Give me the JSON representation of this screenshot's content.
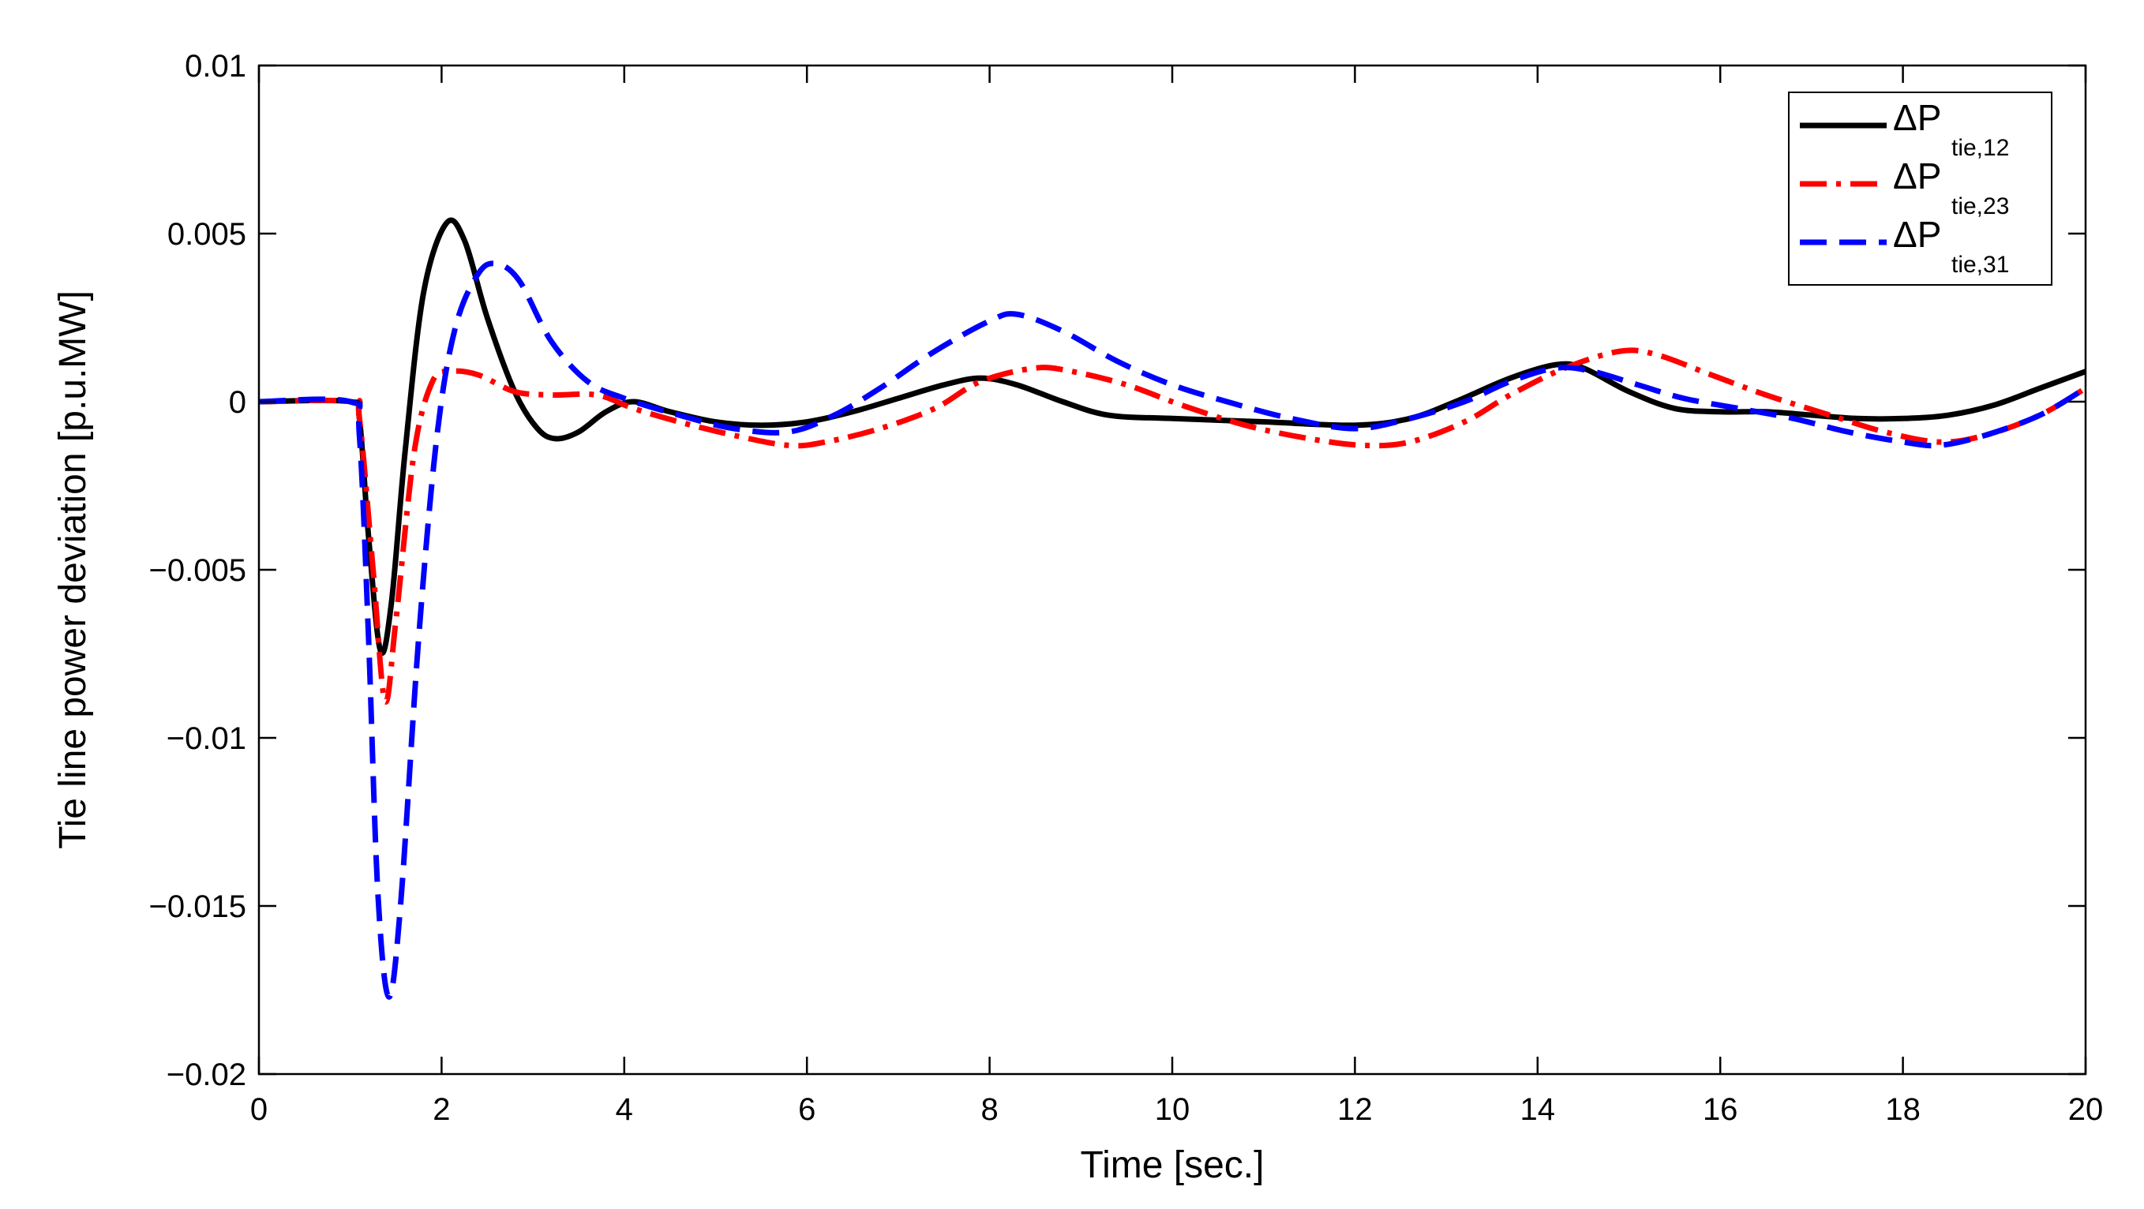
{
  "chart_data": {
    "type": "line",
    "title": "",
    "xlabel": "Time [sec.]",
    "ylabel": "Tie line power deviation [p.u.MW]",
    "xlim": [
      0,
      20
    ],
    "ylim": [
      -0.02,
      0.01
    ],
    "x_ticks": [
      0,
      2,
      4,
      6,
      8,
      10,
      12,
      14,
      16,
      18,
      20
    ],
    "x_tick_labels": [
      "0",
      "2",
      "4",
      "6",
      "8",
      "10",
      "12",
      "14",
      "16",
      "18",
      "20"
    ],
    "y_ticks": [
      0.01,
      0.005,
      0,
      -0.005,
      -0.01,
      -0.015,
      -0.02
    ],
    "y_tick_labels": [
      "0.01",
      "0.005",
      "0",
      "−0.005",
      "−0.01",
      "−0.015",
      "−0.02"
    ],
    "grid": false,
    "legend_position": "top-right",
    "series": [
      {
        "name": "ΔP tie,12",
        "legend_main": "ΔP",
        "legend_sub": "tie,12",
        "color": "#000000",
        "style": "solid",
        "points": [
          [
            0,
            0
          ],
          [
            1.0,
            0
          ],
          [
            1.1,
            -0.0005
          ],
          [
            1.2,
            -0.004
          ],
          [
            1.33,
            -0.0074
          ],
          [
            1.45,
            -0.006
          ],
          [
            1.6,
            -0.0015
          ],
          [
            1.8,
            0.0032
          ],
          [
            2.05,
            0.0053
          ],
          [
            2.25,
            0.0048
          ],
          [
            2.5,
            0.0025
          ],
          [
            2.8,
            0.0003
          ],
          [
            3.05,
            -0.0008
          ],
          [
            3.25,
            -0.0011
          ],
          [
            3.5,
            -0.0009
          ],
          [
            3.8,
            -0.0003
          ],
          [
            4.1,
            0
          ],
          [
            4.5,
            -0.0003
          ],
          [
            5.0,
            -0.0006
          ],
          [
            5.5,
            -0.0007
          ],
          [
            6.0,
            -0.0006
          ],
          [
            6.5,
            -0.0003
          ],
          [
            7.0,
            0.0001
          ],
          [
            7.5,
            0.0005
          ],
          [
            7.9,
            0.0007
          ],
          [
            8.3,
            0.0005
          ],
          [
            8.8,
            0
          ],
          [
            9.3,
            -0.0004
          ],
          [
            10.0,
            -0.0005
          ],
          [
            11.0,
            -0.0006
          ],
          [
            12.0,
            -0.0007
          ],
          [
            12.6,
            -0.0005
          ],
          [
            13.1,
            0
          ],
          [
            13.7,
            0.0007
          ],
          [
            14.2,
            0.0011
          ],
          [
            14.5,
            0.001
          ],
          [
            15.0,
            0.0003
          ],
          [
            15.5,
            -0.0002
          ],
          [
            16.0,
            -0.0003
          ],
          [
            16.5,
            -0.0003
          ],
          [
            17.0,
            -0.0004
          ],
          [
            17.5,
            -0.0005
          ],
          [
            18.0,
            -0.0005
          ],
          [
            18.5,
            -0.0004
          ],
          [
            19.0,
            -0.0001
          ],
          [
            19.5,
            0.0004
          ],
          [
            20.0,
            0.0009
          ]
        ]
      },
      {
        "name": "ΔP tie,23",
        "legend_main": "ΔP",
        "legend_sub": "tie,23",
        "color": "#ff0000",
        "style": "dashdot",
        "points": [
          [
            0,
            0
          ],
          [
            1.0,
            0
          ],
          [
            1.1,
            -0.0005
          ],
          [
            1.25,
            -0.005
          ],
          [
            1.38,
            -0.0089
          ],
          [
            1.5,
            -0.0065
          ],
          [
            1.7,
            -0.0015
          ],
          [
            1.9,
            0.0006
          ],
          [
            2.1,
            0.0009
          ],
          [
            2.4,
            0.0008
          ],
          [
            2.8,
            0.0003
          ],
          [
            3.2,
            0.0002
          ],
          [
            3.7,
            0.0002
          ],
          [
            4.1,
            -0.0002
          ],
          [
            4.6,
            -0.0006
          ],
          [
            5.2,
            -0.001
          ],
          [
            5.8,
            -0.0013
          ],
          [
            6.2,
            -0.0012
          ],
          [
            6.8,
            -0.0008
          ],
          [
            7.4,
            -0.0002
          ],
          [
            7.9,
            0.0006
          ],
          [
            8.5,
            0.001
          ],
          [
            8.9,
            0.0009
          ],
          [
            9.5,
            0.0005
          ],
          [
            10.1,
            -0.0001
          ],
          [
            10.8,
            -0.0007
          ],
          [
            11.5,
            -0.0011
          ],
          [
            12.1,
            -0.0013
          ],
          [
            12.6,
            -0.0012
          ],
          [
            13.2,
            -0.0006
          ],
          [
            13.7,
            0.0002
          ],
          [
            14.3,
            0.001
          ],
          [
            14.9,
            0.0015
          ],
          [
            15.3,
            0.0014
          ],
          [
            15.9,
            0.0008
          ],
          [
            16.5,
            0.0002
          ],
          [
            17.2,
            -0.0004
          ],
          [
            17.8,
            -0.0009
          ],
          [
            18.4,
            -0.0012
          ],
          [
            18.9,
            -0.001
          ],
          [
            19.5,
            -0.0004
          ],
          [
            20.0,
            0.0004
          ]
        ]
      },
      {
        "name": "ΔP tie,31",
        "legend_main": "ΔP",
        "legend_sub": "tie,31",
        "color": "#0000ff",
        "style": "dashed",
        "points": [
          [
            0,
            0
          ],
          [
            1.0,
            0
          ],
          [
            1.1,
            -0.001
          ],
          [
            1.2,
            -0.007
          ],
          [
            1.3,
            -0.0145
          ],
          [
            1.42,
            -0.0177
          ],
          [
            1.55,
            -0.015
          ],
          [
            1.75,
            -0.007
          ],
          [
            1.95,
            -0.001
          ],
          [
            2.15,
            0.0022
          ],
          [
            2.4,
            0.0038
          ],
          [
            2.6,
            0.0041
          ],
          [
            2.85,
            0.0036
          ],
          [
            3.2,
            0.0018
          ],
          [
            3.6,
            0.0006
          ],
          [
            4.0,
            0.0001
          ],
          [
            4.6,
            -0.0004
          ],
          [
            5.2,
            -0.0008
          ],
          [
            5.8,
            -0.0009
          ],
          [
            6.3,
            -0.0004
          ],
          [
            6.8,
            0.0004
          ],
          [
            7.4,
            0.0015
          ],
          [
            8.0,
            0.0024
          ],
          [
            8.3,
            0.0026
          ],
          [
            8.8,
            0.0021
          ],
          [
            9.4,
            0.0012
          ],
          [
            10.0,
            0.0005
          ],
          [
            10.6,
            0
          ],
          [
            11.3,
            -0.0005
          ],
          [
            12.0,
            -0.0008
          ],
          [
            12.6,
            -0.0005
          ],
          [
            13.2,
            0
          ],
          [
            13.7,
            0.0006
          ],
          [
            14.2,
            0.001
          ],
          [
            14.6,
            0.0009
          ],
          [
            15.1,
            0.0005
          ],
          [
            15.6,
            0.0001
          ],
          [
            16.2,
            -0.0002
          ],
          [
            16.8,
            -0.0005
          ],
          [
            17.4,
            -0.0009
          ],
          [
            18.0,
            -0.0012
          ],
          [
            18.4,
            -0.0013
          ],
          [
            18.9,
            -0.001
          ],
          [
            19.5,
            -0.0004
          ],
          [
            20.0,
            0.0004
          ]
        ]
      }
    ]
  }
}
